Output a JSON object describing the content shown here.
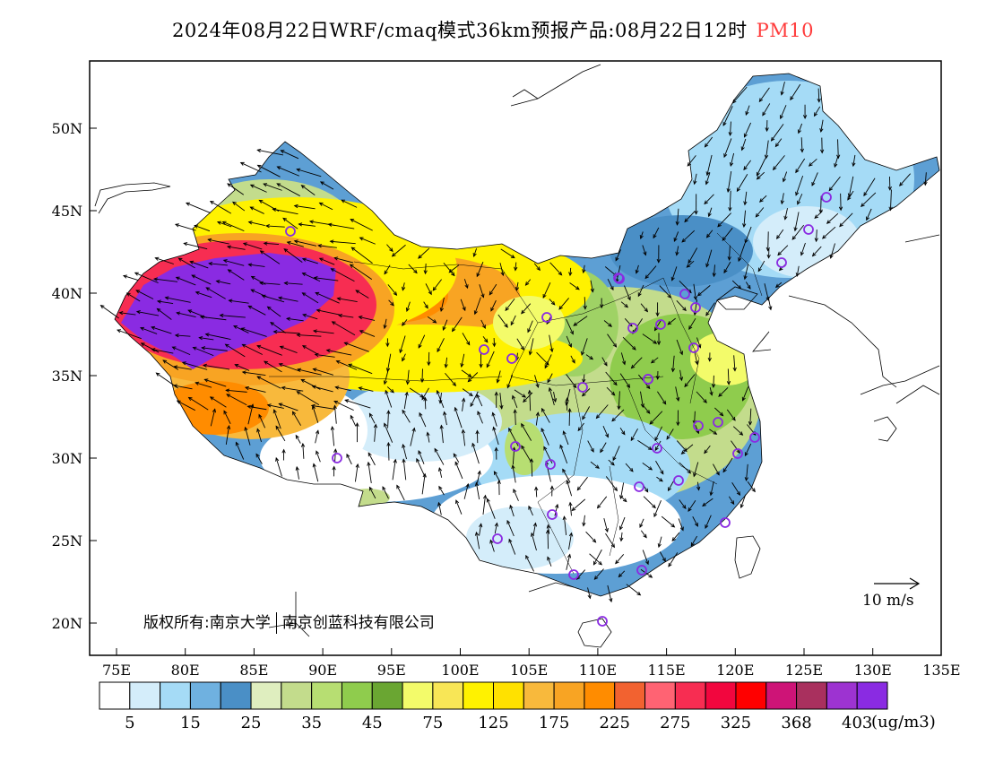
{
  "title": {
    "main": "2024年08月22日WRF/cmaq模式36km预报产品:08月22日12时",
    "variable": "PM10"
  },
  "map": {
    "lat_axis_labels": [
      "50N",
      "45N",
      "40N",
      "35N",
      "30N",
      "25N",
      "20N"
    ],
    "lon_axis_labels": [
      "75E",
      "80E",
      "85E",
      "90E",
      "95E",
      "100E",
      "105E",
      "110E",
      "115E",
      "120E",
      "125E",
      "130E",
      "135E"
    ],
    "copyright_left": "版权所有:南京大学",
    "copyright_right": "南京创蓝科技有限公司",
    "wind_reference_label": "10 m/s",
    "stations": 33,
    "colors": {
      "purple_extreme": "#8a2be2",
      "red_high": "#ff0000",
      "orange": "#ff8c00",
      "yellow": "#fff200",
      "green": "#9acd5a",
      "blue": "#4a90c8",
      "station_marker": "#8a2be2"
    }
  },
  "legend": {
    "unit": "(ug/m3)",
    "labels": [
      "5",
      "15",
      "25",
      "35",
      "45",
      "75",
      "125",
      "175",
      "225",
      "275",
      "325",
      "368",
      "403"
    ],
    "colors": [
      "#ffffff",
      "#d4edfa",
      "#a5dbf6",
      "#6fb1e0",
      "#4a8fc6",
      "#dfeebf",
      "#c3dc8c",
      "#b7de72",
      "#8fcc4d",
      "#6aa632",
      "#f3fb6a",
      "#f8e656",
      "#fff200",
      "#ffe100",
      "#f8b93c",
      "#f8a423",
      "#ff8c00",
      "#f26230",
      "#ff6373",
      "#f72d52",
      "#f2063e",
      "#ff0000",
      "#ce1477",
      "#a9305e",
      "#9d33d1",
      "#8a2be2"
    ]
  }
}
